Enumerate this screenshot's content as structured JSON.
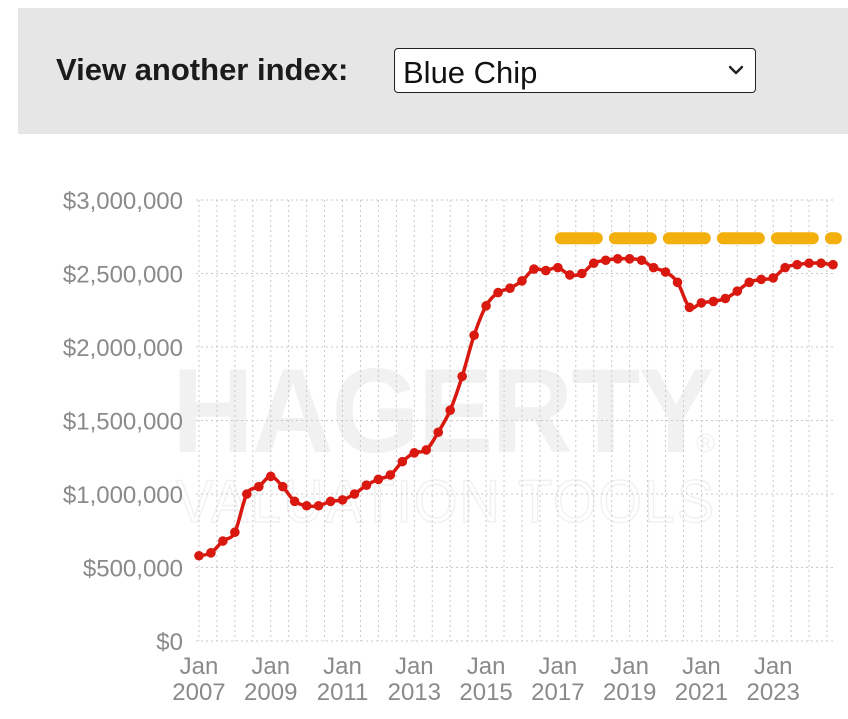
{
  "selector": {
    "label": "View another index:",
    "selected": "Blue Chip"
  },
  "watermark": {
    "main": "HAGERTY",
    "sub": "VALUATION TOOLS",
    "mark": "®"
  },
  "colors": {
    "series": "#d9180f",
    "reference": "#f3b00c",
    "grid": "#c8c8c8",
    "panel": "#e6e6e6"
  },
  "chart_data": {
    "type": "line",
    "title": "",
    "xlabel": "",
    "ylabel": "",
    "ylim": [
      0,
      3000000
    ],
    "yticks": [
      0,
      500000,
      1000000,
      1500000,
      2000000,
      2500000,
      3000000
    ],
    "ytick_labels": [
      "$0",
      "$500,000",
      "$1,000,000",
      "$1,500,000",
      "$2,000,000",
      "$2,500,000",
      "$3,000,000"
    ],
    "xlim": [
      "2006-10",
      "2024-10"
    ],
    "xticks": [
      "2007-01",
      "2009-01",
      "2011-01",
      "2013-01",
      "2015-01",
      "2017-01",
      "2019-01",
      "2021-01",
      "2023-01"
    ],
    "xtick_labels": [
      [
        "Jan",
        "2007"
      ],
      [
        "Jan",
        "2009"
      ],
      [
        "Jan",
        "2011"
      ],
      [
        "Jan",
        "2013"
      ],
      [
        "Jan",
        "2015"
      ],
      [
        "Jan",
        "2017"
      ],
      [
        "Jan",
        "2019"
      ],
      [
        "Jan",
        "2021"
      ],
      [
        "Jan",
        "2023"
      ]
    ],
    "grid": true,
    "legend": "none",
    "series": [
      {
        "values": [
          [
            "2007-01",
            580000
          ],
          [
            "2007-05",
            600000
          ],
          [
            "2007-09",
            680000
          ],
          [
            "2008-01",
            740000
          ],
          [
            "2008-05",
            1000000
          ],
          [
            "2008-09",
            1050000
          ],
          [
            "2009-01",
            1120000
          ],
          [
            "2009-05",
            1050000
          ],
          [
            "2009-09",
            950000
          ],
          [
            "2010-01",
            920000
          ],
          [
            "2010-05",
            920000
          ],
          [
            "2010-09",
            950000
          ],
          [
            "2011-01",
            960000
          ],
          [
            "2011-05",
            1000000
          ],
          [
            "2011-09",
            1060000
          ],
          [
            "2012-01",
            1100000
          ],
          [
            "2012-05",
            1130000
          ],
          [
            "2012-09",
            1220000
          ],
          [
            "2013-01",
            1280000
          ],
          [
            "2013-05",
            1300000
          ],
          [
            "2013-09",
            1420000
          ],
          [
            "2014-01",
            1570000
          ],
          [
            "2014-05",
            1800000
          ],
          [
            "2014-09",
            2080000
          ],
          [
            "2015-01",
            2280000
          ],
          [
            "2015-05",
            2370000
          ],
          [
            "2015-09",
            2400000
          ],
          [
            "2016-01",
            2450000
          ],
          [
            "2016-05",
            2530000
          ],
          [
            "2016-09",
            2520000
          ],
          [
            "2017-01",
            2540000
          ],
          [
            "2017-05",
            2490000
          ],
          [
            "2017-09",
            2500000
          ],
          [
            "2018-01",
            2570000
          ],
          [
            "2018-05",
            2590000
          ],
          [
            "2018-09",
            2600000
          ],
          [
            "2019-01",
            2600000
          ],
          [
            "2019-05",
            2590000
          ],
          [
            "2019-09",
            2540000
          ],
          [
            "2020-01",
            2510000
          ],
          [
            "2020-05",
            2440000
          ],
          [
            "2020-09",
            2270000
          ],
          [
            "2021-01",
            2300000
          ],
          [
            "2021-05",
            2310000
          ],
          [
            "2021-09",
            2330000
          ],
          [
            "2022-01",
            2380000
          ],
          [
            "2022-05",
            2440000
          ],
          [
            "2022-09",
            2460000
          ],
          [
            "2023-01",
            2470000
          ],
          [
            "2023-05",
            2540000
          ],
          [
            "2023-09",
            2560000
          ],
          [
            "2024-01",
            2570000
          ],
          [
            "2024-05",
            2570000
          ],
          [
            "2024-09",
            2560000
          ]
        ]
      }
    ],
    "reference_line": {
      "style": "dashed",
      "value": 2740000,
      "from": "2017-02",
      "to": "2024-10"
    }
  }
}
